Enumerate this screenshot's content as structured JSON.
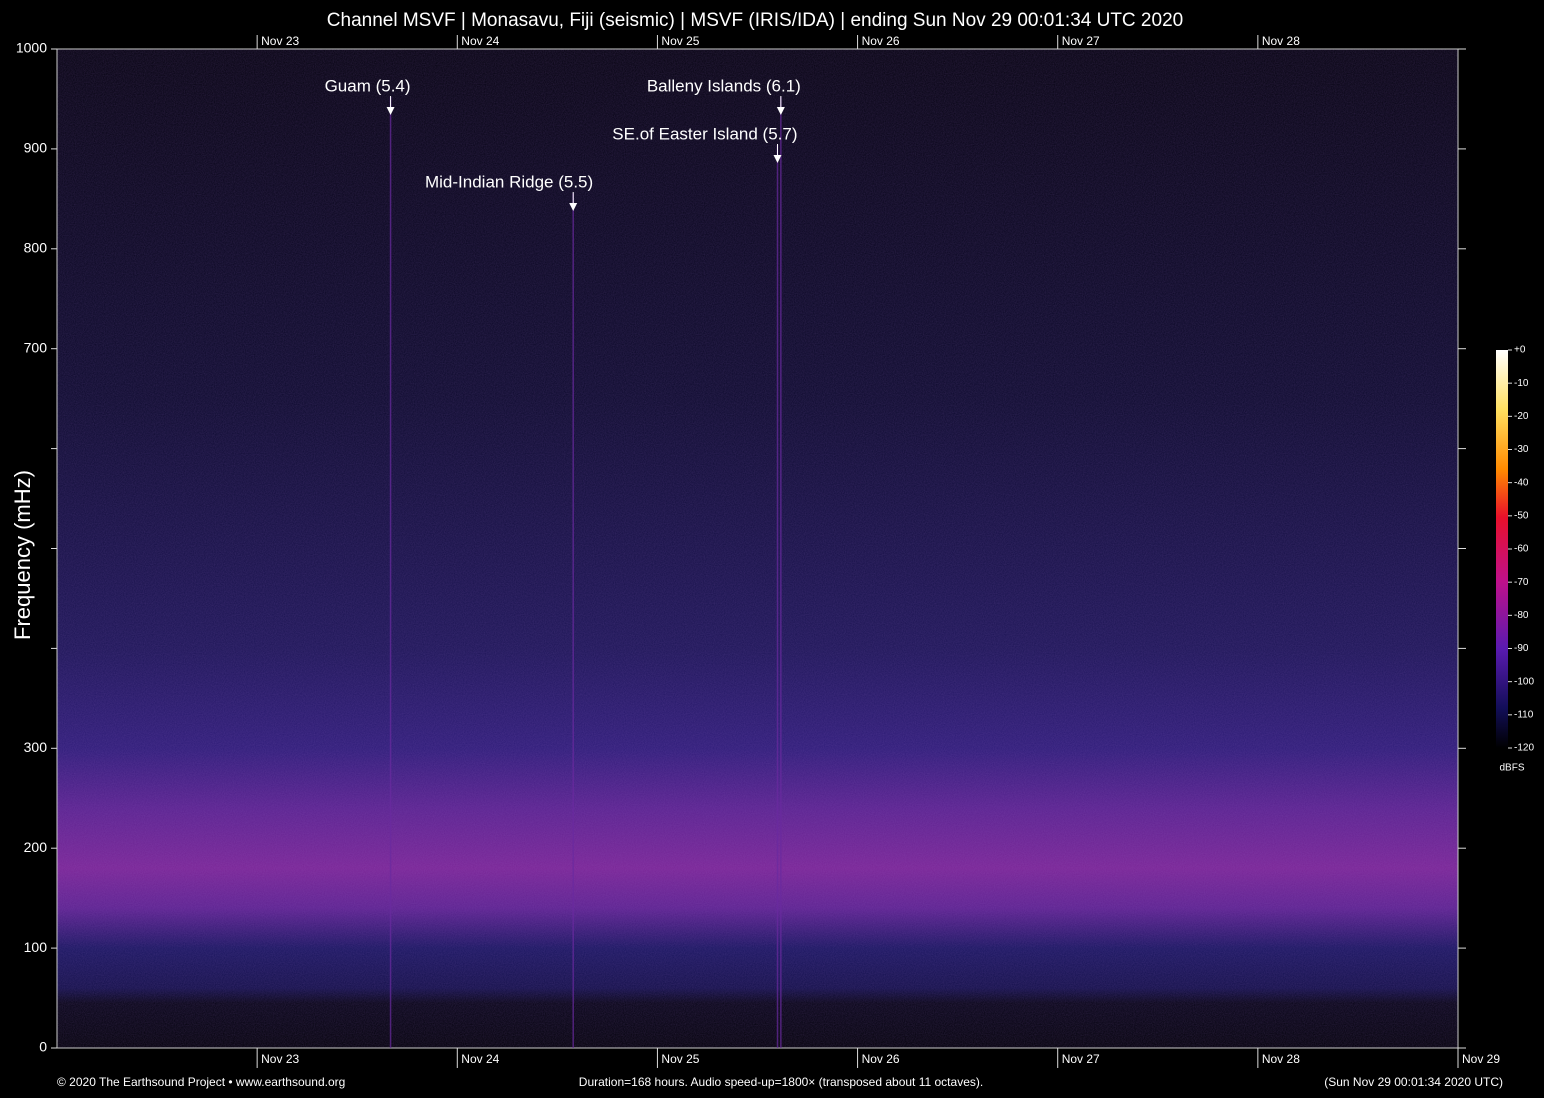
{
  "chart_data": {
    "type": "spectrogram",
    "title": "Channel MSVF | Monasavu, Fiji (seismic) | MSVF (IRIS/IDA) | ending Sun Nov 29 00:01:34 UTC 2020",
    "y_label": "Frequency (mHz)",
    "ylim": [
      0,
      1000
    ],
    "yticks": [
      0,
      100,
      200,
      300,
      {
        "value": 400,
        "label": null
      },
      {
        "value": 500,
        "label": null
      },
      {
        "value": 600,
        "label": null
      },
      700,
      800,
      900,
      1000
    ],
    "xlim": [
      0,
      168
    ],
    "xticks": [
      {
        "value": 24,
        "label": "Nov 23"
      },
      {
        "value": 48,
        "label": "Nov 24"
      },
      {
        "value": 72,
        "label": "Nov 25"
      },
      {
        "value": 96,
        "label": "Nov 26"
      },
      {
        "value": 120,
        "label": "Nov 27"
      },
      {
        "value": 144,
        "label": "Nov 28"
      },
      {
        "value": 168,
        "label": "Nov 29"
      }
    ],
    "events": [
      {
        "label": "Guam (5.4)",
        "x": 40
      },
      {
        "label": "Balleny Islands (6.1)",
        "x": 86.8
      },
      {
        "label": "SE.of Easter Island (5.7)",
        "x": 86.4
      },
      {
        "label": "Mid-Indian Ridge (5.5)",
        "x": 61.9
      }
    ],
    "colorbar": {
      "unit": "dBFS",
      "lim": [
        -120,
        0
      ],
      "ticks": [
        {
          "value": 0,
          "label": "+0"
        },
        -10,
        -20,
        -30,
        -40,
        -50,
        -60,
        -70,
        -80,
        -90,
        -100,
        -110,
        -120
      ]
    },
    "footer": {
      "left": "© 2020 The Earthsound Project • www.earthsound.org",
      "center": "Duration=168 hours. Audio speed-up=1800× (transposed about 11 octaves).",
      "right": "(Sun Nov 29 00:01:34 2020 UTC)"
    }
  }
}
